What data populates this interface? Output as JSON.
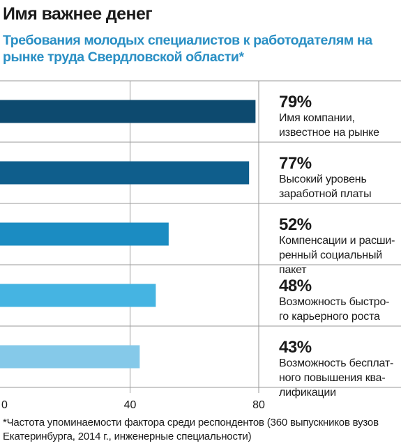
{
  "header": {
    "title": "Имя важнее денег",
    "subtitle": "Требования молодых специалистов к работодателям на рынке труда Свердловской области*"
  },
  "footnote": "*Частота упоминаемости фактора среди респондентов (360 выпускников вузов Екатеринбурга, 2014 г., инженерные специальности)",
  "colors": [
    "#0d4a6f",
    "#0f5e8c",
    "#1b8cc2",
    "#45b4e2",
    "#85c9e9"
  ],
  "chart_data": {
    "type": "bar",
    "orientation": "horizontal",
    "title": "Имя важнее денег",
    "subtitle": "Требования молодых специалистов к работодателям на рынке труда Свердловской области*",
    "xlabel": "",
    "ylabel": "",
    "xlim": [
      0,
      80
    ],
    "xticks": [
      "0",
      "40",
      "80"
    ],
    "grid": false,
    "legend": "none",
    "categories": [
      "Имя компании, известное на рынке",
      "Высокий уровень заработной платы",
      "Компенсации и расширенный социальный пакет",
      "Возможность быстрого карьерного роста",
      "Возможность бесплатного повышения квалификации"
    ],
    "values": [
      79,
      77,
      52,
      48,
      43
    ],
    "value_labels": [
      "79%",
      "77%",
      "52%",
      "48%",
      "43%"
    ],
    "label_lines": [
      [
        "Имя компании,",
        "известное на рынке"
      ],
      [
        "Высокий уровень",
        "заработной платы"
      ],
      [
        "Компенсации и расши-",
        "ренный социальный",
        "пакет"
      ],
      [
        "Возможность быстро-",
        "го карьерного роста"
      ],
      [
        "Возможность бесплат-",
        "ного повышения ква-",
        "лификации"
      ]
    ]
  }
}
